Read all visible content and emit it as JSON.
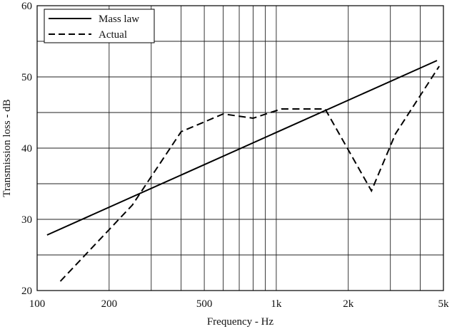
{
  "chart_data": {
    "type": "line",
    "xscale": "log",
    "xlim": [
      100,
      5000
    ],
    "ylim": [
      20,
      60
    ],
    "xlabel": "Frequency - Hz",
    "ylabel": "Transmission loss - dB",
    "grid": true,
    "legend_position": "top-left",
    "x_ticks": [
      {
        "value": 100,
        "label": "100"
      },
      {
        "value": 200,
        "label": "200"
      },
      {
        "value": 500,
        "label": "500"
      },
      {
        "value": 1000,
        "label": "1k"
      },
      {
        "value": 2000,
        "label": "2k"
      },
      {
        "value": 5000,
        "label": "5k"
      }
    ],
    "x_minor_gridlines": [
      300,
      400,
      600,
      700,
      800,
      900,
      3000,
      4000
    ],
    "y_ticks": [
      {
        "value": 20,
        "label": "20"
      },
      {
        "value": 30,
        "label": "30"
      },
      {
        "value": 40,
        "label": "40"
      },
      {
        "value": 50,
        "label": "50"
      },
      {
        "value": 60,
        "label": "60"
      }
    ],
    "y_minor_gridlines": [
      25,
      35,
      45,
      55
    ],
    "series": [
      {
        "name": "Mass law",
        "style": "solid",
        "color": "#000000",
        "points": [
          {
            "x": 110,
            "y": 27.8
          },
          {
            "x": 4700,
            "y": 52.3
          }
        ]
      },
      {
        "name": "Actual",
        "style": "dashed",
        "color": "#000000",
        "points": [
          {
            "x": 125,
            "y": 21.3
          },
          {
            "x": 250,
            "y": 32
          },
          {
            "x": 400,
            "y": 42.3
          },
          {
            "x": 600,
            "y": 44.8
          },
          {
            "x": 800,
            "y": 44.2
          },
          {
            "x": 1050,
            "y": 45.5
          },
          {
            "x": 1600,
            "y": 45.5
          },
          {
            "x": 2500,
            "y": 34
          },
          {
            "x": 3150,
            "y": 42
          },
          {
            "x": 4800,
            "y": 51.5
          }
        ]
      }
    ]
  }
}
